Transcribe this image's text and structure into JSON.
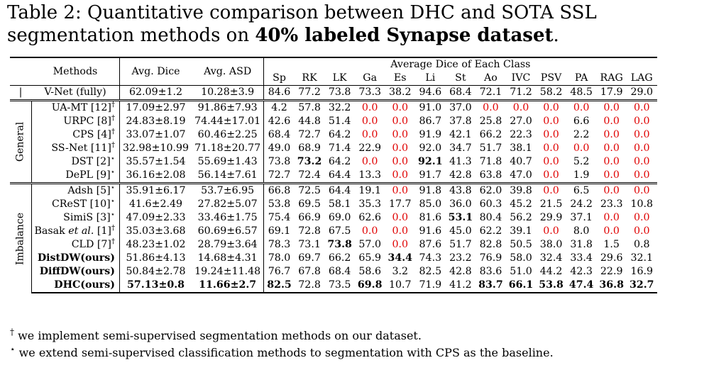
{
  "caption": {
    "prefix": "Table 2: Quantitative comparison between DHC and SOTA SSL segmentation methods on ",
    "bold": "40% labeled Synapse dataset",
    "suffix": "."
  },
  "headers": {
    "methods": "Methods",
    "avg_dice": "Avg. Dice",
    "avg_asd": "Avg. ASD",
    "group": "Average Dice of Each Class",
    "classes": [
      "Sp",
      "RK",
      "LK",
      "Ga",
      "Es",
      "Li",
      "St",
      "Ao",
      "IVC",
      "PSV",
      "PA",
      "RAG",
      "LAG"
    ]
  },
  "fully": {
    "method": "V-Net (fully)",
    "dice": "62.09±1.2",
    "asd": "10.28±3.9",
    "values": [
      "84.6",
      "77.2",
      "73.8",
      "73.3",
      "38.2",
      "94.6",
      "68.4",
      "72.1",
      "71.2",
      "58.2",
      "48.5",
      "17.9",
      "29.0"
    ]
  },
  "groups": [
    {
      "label": "General",
      "rows": [
        {
          "method": "UA-MT [12]",
          "mark": "†",
          "dice": "17.09±2.97",
          "asd": "91.86±7.93",
          "values": [
            "4.2",
            "57.8",
            "32.2",
            "0.0",
            "0.0",
            "91.0",
            "37.0",
            "0.0",
            "0.0",
            "0.0",
            "0.0",
            "0.0",
            "0.0"
          ]
        },
        {
          "method": "URPC [8]",
          "mark": "†",
          "dice": "24.83±8.19",
          "asd": "74.44±17.01",
          "values": [
            "42.6",
            "44.8",
            "51.4",
            "0.0",
            "0.0",
            "86.7",
            "37.8",
            "25.8",
            "27.0",
            "0.0",
            "6.6",
            "0.0",
            "0.0"
          ]
        },
        {
          "method": "CPS [4]",
          "mark": "†",
          "dice": "33.07±1.07",
          "asd": "60.46±2.25",
          "values": [
            "68.4",
            "72.7",
            "64.2",
            "0.0",
            "0.0",
            "91.9",
            "42.1",
            "66.2",
            "22.3",
            "0.0",
            "2.2",
            "0.0",
            "0.0"
          ]
        },
        {
          "method": "SS-Net [11]",
          "mark": "†",
          "dice": "32.98±10.99",
          "asd": "71.18±20.77",
          "values": [
            "49.0",
            "68.9",
            "71.4",
            "22.9",
            "0.0",
            "92.0",
            "34.7",
            "51.7",
            "38.1",
            "0.0",
            "0.0",
            "0.0",
            "0.0"
          ]
        },
        {
          "method": "DST [2]",
          "mark": "⋆",
          "dice": "35.57±1.54",
          "asd": "55.69±1.43",
          "values": [
            "73.8",
            "73.2",
            "64.2",
            "0.0",
            "0.0",
            "92.1",
            "41.3",
            "71.8",
            "40.7",
            "0.0",
            "5.2",
            "0.0",
            "0.0"
          ]
        },
        {
          "method": "DePL [9]",
          "mark": "⋆",
          "dice": "36.16±2.08",
          "asd": "56.14±7.61",
          "values": [
            "72.7",
            "72.4",
            "64.4",
            "13.3",
            "0.0",
            "91.7",
            "42.8",
            "63.8",
            "47.0",
            "0.0",
            "1.9",
            "0.0",
            "0.0"
          ]
        }
      ]
    },
    {
      "label": "Imbalance",
      "rows": [
        {
          "method": "Adsh [5]",
          "mark": "⋆",
          "dice": "35.91±6.17",
          "asd": "53.7±6.95",
          "values": [
            "66.8",
            "72.5",
            "64.4",
            "19.1",
            "0.0",
            "91.8",
            "43.8",
            "62.0",
            "39.8",
            "0.0",
            "6.5",
            "0.0",
            "0.0"
          ]
        },
        {
          "method": "CReST [10]",
          "mark": "⋆",
          "dice": "41.6±2.49",
          "asd": "27.82±5.07",
          "values": [
            "53.8",
            "69.5",
            "58.1",
            "35.3",
            "17.7",
            "85.0",
            "36.0",
            "60.3",
            "45.2",
            "21.5",
            "24.2",
            "23.3",
            "10.8"
          ]
        },
        {
          "method": "SimiS [3]",
          "mark": "⋆",
          "dice": "47.09±2.33",
          "asd": "33.46±1.75",
          "values": [
            "75.4",
            "66.9",
            "69.0",
            "62.6",
            "0.0",
            "81.6",
            "53.1",
            "80.4",
            "56.2",
            "29.9",
            "37.1",
            "0.0",
            "0.0"
          ]
        },
        {
          "method": "Basak et al. [1]",
          "mark": "†",
          "dice": "35.03±3.68",
          "asd": "60.69±6.57",
          "values": [
            "69.1",
            "72.8",
            "67.5",
            "0.0",
            "0.0",
            "91.6",
            "45.0",
            "62.2",
            "39.1",
            "0.0",
            "8.0",
            "0.0",
            "0.0"
          ]
        },
        {
          "method": "CLD [7]",
          "mark": "†",
          "dice": "48.23±1.02",
          "asd": "28.79±3.64",
          "values": [
            "78.3",
            "73.1",
            "73.8",
            "57.0",
            "0.0",
            "87.6",
            "51.7",
            "82.8",
            "50.5",
            "38.0",
            "31.8",
            "1.5",
            "0.8"
          ]
        },
        {
          "method": "DistDW(ours)",
          "mark": "",
          "dice": "51.86±4.13",
          "asd": "14.68±4.31",
          "values": [
            "78.0",
            "69.7",
            "66.2",
            "65.9",
            "34.4",
            "74.3",
            "23.2",
            "76.9",
            "58.0",
            "32.4",
            "33.4",
            "29.6",
            "32.1"
          ]
        },
        {
          "method": "DiffDW(ours)",
          "mark": "",
          "dice": "50.84±2.78",
          "asd": "19.24±11.48",
          "values": [
            "76.7",
            "67.8",
            "68.4",
            "58.6",
            "3.2",
            "82.5",
            "42.8",
            "83.6",
            "51.0",
            "44.2",
            "42.3",
            "22.9",
            "16.9"
          ]
        },
        {
          "method": "DHC(ours)",
          "mark": "",
          "dice": "57.13±0.8",
          "asd": "11.66±2.7",
          "values": [
            "82.5",
            "72.8",
            "73.5",
            "69.8",
            "10.7",
            "71.9",
            "41.2",
            "83.7",
            "66.1",
            "53.8",
            "47.4",
            "36.8",
            "32.7"
          ]
        }
      ]
    }
  ],
  "footnotes": [
    {
      "mark": "†",
      "text": "we implement semi-supervised segmentation methods on our dataset."
    },
    {
      "mark": "⋆",
      "text": "we extend semi-supervised classification methods to segmentation with CPS as the baseline."
    }
  ]
}
